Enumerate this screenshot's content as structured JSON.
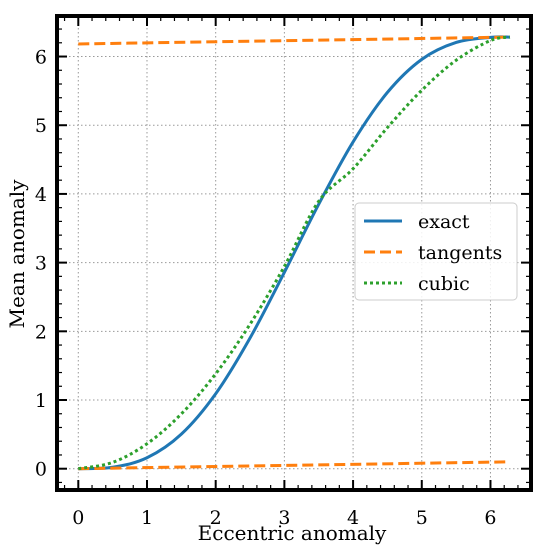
{
  "chart_data": {
    "type": "line",
    "xlabel": "Eccentric anomaly",
    "ylabel": "Mean anomaly",
    "xlim": [
      -0.31,
      6.59
    ],
    "ylim": [
      -0.31,
      6.59
    ],
    "xticks": [
      0,
      1,
      2,
      3,
      4,
      5,
      6
    ],
    "yticks": [
      0,
      1,
      2,
      3,
      4,
      5,
      6
    ],
    "grid": true,
    "legend_position": "center-right",
    "eccentricity": 1,
    "series": [
      {
        "name": "exact",
        "style": "solid",
        "color": "#1f77b4",
        "x": [
          0,
          0.5,
          1,
          1.5,
          2,
          2.5,
          3,
          3.5,
          4,
          4.5,
          5,
          5.5,
          6,
          6.283
        ],
        "y": [
          0,
          0.021,
          0.159,
          0.503,
          1.091,
          1.902,
          2.859,
          3.851,
          4.757,
          5.478,
          5.959,
          6.205,
          6.279,
          6.283
        ]
      },
      {
        "name": "tangents",
        "style": "dashed",
        "color": "#ff7f0e",
        "segments": [
          {
            "x": [
              0,
              6.283
            ],
            "y": [
              0,
              0.1
            ]
          },
          {
            "x": [
              0,
              6.283
            ],
            "y": [
              6.183,
              6.283
            ]
          }
        ]
      },
      {
        "name": "cubic",
        "style": "dotted",
        "color": "#2ca02c",
        "x": [
          0,
          0.5,
          1,
          1.5,
          2,
          2.5,
          3,
          3.5,
          4,
          4.5,
          5,
          5.5,
          6,
          6.283
        ],
        "y": [
          0,
          0.092,
          0.363,
          0.798,
          1.382,
          2.103,
          2.945,
          3.894,
          4.367,
          4.966,
          5.509,
          5.946,
          6.233,
          6.283
        ]
      }
    ]
  }
}
